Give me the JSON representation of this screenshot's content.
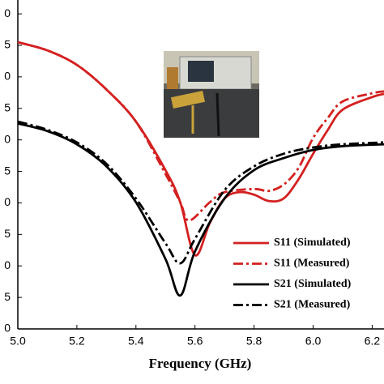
{
  "chart_data": {
    "type": "line",
    "x_label": "Frequency (GHz)",
    "xlim": [
      5.0,
      6.24
    ],
    "ylim": [
      -50,
      2.2
    ],
    "xticks": [
      {
        "value": 5,
        "label": "5.0"
      },
      5.2,
      5.4,
      5.6,
      5.8,
      {
        "value": 6,
        "label": "6.0"
      },
      6.2
    ],
    "yticks": [
      0,
      {
        "value": -5,
        "label": "5"
      },
      {
        "value": -10,
        "label": "0"
      },
      {
        "value": -15,
        "label": "5"
      },
      {
        "value": -20,
        "label": "0"
      },
      {
        "value": -25,
        "label": "5"
      },
      {
        "value": -30,
        "label": "0"
      },
      {
        "value": -35,
        "label": "5"
      },
      {
        "value": -40,
        "label": "0"
      },
      {
        "value": -45,
        "label": "5"
      },
      {
        "value": -50,
        "label": "0"
      }
    ],
    "legend": "lower right",
    "series": [
      {
        "name": "S11 (Simulated)",
        "color": "#d42020",
        "style": "solid",
        "x": [
          5.0,
          5.1,
          5.2,
          5.3,
          5.4,
          5.5,
          5.55,
          5.6,
          5.65,
          5.7,
          5.75,
          5.8,
          5.85,
          5.9,
          5.95,
          6.0,
          6.05,
          6.1,
          6.2,
          6.24
        ],
        "values": [
          -4.5,
          -5.8,
          -8.1,
          -12.0,
          -17.1,
          -24.8,
          -29.9,
          -38.3,
          -33.2,
          -29.3,
          -28.3,
          -28.7,
          -29.7,
          -29.3,
          -26.3,
          -22.2,
          -18.4,
          -15.2,
          -13.2,
          -12.7
        ]
      },
      {
        "name": "S11 (Measured)",
        "color": "#d42020",
        "style": "dashdot",
        "x": [
          5.0,
          5.1,
          5.2,
          5.3,
          5.4,
          5.5,
          5.55,
          5.58,
          5.65,
          5.7,
          5.8,
          5.85,
          5.9,
          5.95,
          6.0,
          6.05,
          6.1,
          6.2,
          6.24
        ],
        "values": [
          -4.5,
          -5.8,
          -8.1,
          -12.0,
          -17.1,
          -25.4,
          -29.9,
          -32.8,
          -29.9,
          -28.3,
          -27.8,
          -28.1,
          -27.1,
          -24.5,
          -19.7,
          -16.5,
          -13.9,
          -12.6,
          -12.3
        ]
      },
      {
        "name": "S21 (Simulated)",
        "color": "#000000",
        "style": "solid",
        "x": [
          5.0,
          5.1,
          5.2,
          5.3,
          5.4,
          5.5,
          5.55,
          5.6,
          5.7,
          5.8,
          5.9,
          6.0,
          6.1,
          6.24
        ],
        "values": [
          -17.4,
          -18.6,
          -20.7,
          -24.2,
          -29.9,
          -38.9,
          -44.7,
          -37.7,
          -29.3,
          -24.8,
          -22.9,
          -21.6,
          -21.0,
          -20.7
        ]
      },
      {
        "name": "S21 (Measured)",
        "color": "#000000",
        "style": "dashdot",
        "x": [
          5.0,
          5.1,
          5.2,
          5.3,
          5.4,
          5.5,
          5.55,
          5.6,
          5.7,
          5.8,
          5.9,
          6.0,
          6.1,
          6.24
        ],
        "values": [
          -17.1,
          -18.4,
          -20.4,
          -23.8,
          -29.3,
          -36.4,
          -39.6,
          -35.7,
          -28.0,
          -24.2,
          -22.2,
          -21.2,
          -20.7,
          -20.4
        ]
      }
    ]
  }
}
